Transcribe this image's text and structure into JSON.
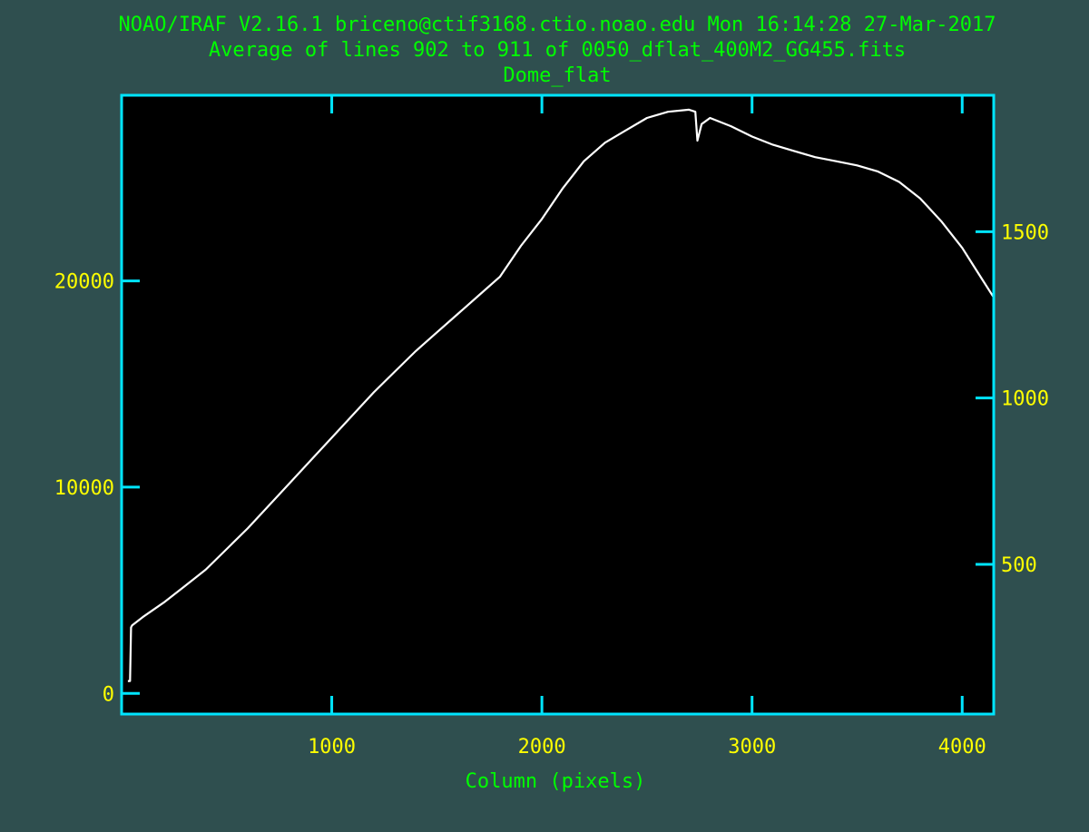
{
  "header": {
    "line1": "NOAO/IRAF V2.16.1 briceno@ctif3168.ctio.noao.edu Mon 16:14:28 27-Mar-2017",
    "line2": "Average of lines 902 to 911 of 0050_dflat_400M2_GG455.fits",
    "line3": "Dome_flat"
  },
  "colors": {
    "background": "#2f4f4f",
    "frame": "#00e5ff",
    "plot_area": "#000000",
    "trace": "#ffffff",
    "tick_labels": "#ffff00",
    "header_text": "#00ff00"
  },
  "chart_data": {
    "type": "line",
    "title": "Dome_flat",
    "xlabel": "Column (pixels)",
    "ylabel": "",
    "xlim": [
      0,
      4150
    ],
    "ylim": [
      -1000,
      29000
    ],
    "right_ylim": [
      50,
      1910
    ],
    "grid": false,
    "x_ticks": [
      {
        "value": 1000,
        "label": "1000"
      },
      {
        "value": 2000,
        "label": "2000"
      },
      {
        "value": 3000,
        "label": "3000"
      },
      {
        "value": 4000,
        "label": "4000"
      }
    ],
    "y_ticks": [
      {
        "value": 0,
        "label": "0"
      },
      {
        "value": 10000,
        "label": "10000"
      },
      {
        "value": 20000,
        "label": "20000"
      }
    ],
    "right_ticks": [
      {
        "value": 500,
        "label": "500"
      },
      {
        "value": 1000,
        "label": "1000"
      },
      {
        "value": 1500,
        "label": "1500"
      }
    ],
    "series": [
      {
        "x": [
          30,
          40,
          45,
          50,
          100,
          200,
          300,
          400,
          500,
          600,
          700,
          800,
          900,
          1000,
          1100,
          1200,
          1300,
          1400,
          1500,
          1600,
          1700,
          1800,
          1900,
          2000,
          2100,
          2200,
          2300,
          2400,
          2500,
          2600,
          2700,
          2730,
          2740,
          2760,
          2800,
          2900,
          3000,
          3100,
          3200,
          3300,
          3400,
          3500,
          3600,
          3700,
          3800,
          3900,
          4000,
          4050,
          4100,
          4150
        ],
        "y": [
          600,
          600,
          3200,
          3300,
          3700,
          4400,
          5200,
          6000,
          7000,
          8000,
          9100,
          10200,
          11300,
          12400,
          13500,
          14600,
          15600,
          16600,
          17500,
          18400,
          19300,
          20200,
          21700,
          23000,
          24500,
          25800,
          26700,
          27300,
          27900,
          28200,
          28300,
          28200,
          26800,
          27600,
          27900,
          27500,
          27000,
          26600,
          26300,
          26000,
          25800,
          25600,
          25300,
          24800,
          24000,
          22900,
          21600,
          20800,
          20000,
          19200
        ]
      }
    ]
  }
}
